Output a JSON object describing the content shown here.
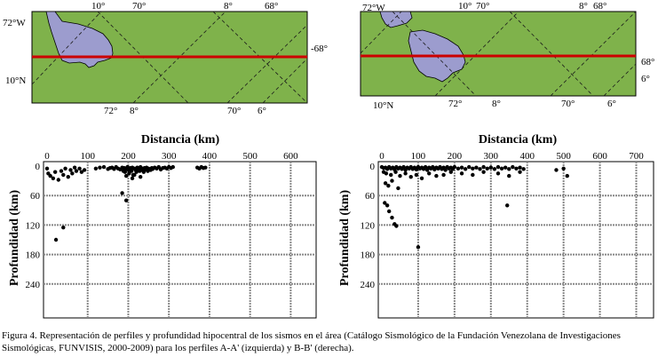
{
  "caption": "Figura 4. Representación de perfiles y profundidad hipocentral de los sismos en el área (Catálogo Sismológico de la Fundación Venezolana de Investigaciones Sismológicas, FUNVISIS, 2000-2009) para los perfiles A-A' (izquierda) y B-B' (derecha).",
  "colors": {
    "land": "#7fb24b",
    "lake": "#9c9cce",
    "profile_line": "#cc0000",
    "grid": "#888888"
  },
  "maps": [
    {
      "id": "left",
      "labels": {
        "top_10": "10°",
        "top_70": "70°",
        "top_8": "8°",
        "top_68": "68°",
        "left_72w": "72°W",
        "left_10n": "10°N",
        "right_68": "-68°",
        "bottom_72": "72°",
        "bottom_8": "8°",
        "bottom_70": "70°",
        "bottom_6": "6°"
      }
    },
    {
      "id": "right",
      "labels": {
        "top_72w": "72°W",
        "top_10": "10°",
        "top_70": "70°",
        "top_8": "8°",
        "top_68": "68°",
        "right_68": "68°",
        "right_6": "6°",
        "bottom_10n": "10°N",
        "bottom_72": "72°",
        "bottom_8": "8°",
        "bottom_70": "70°",
        "bottom_6": "6°"
      }
    }
  ],
  "chart_data": [
    {
      "type": "scatter",
      "xlabel": "Distancia (km)",
      "ylabel": "Profundidad (km)",
      "xlim": [
        0,
        700
      ],
      "ylim": [
        0,
        300
      ],
      "x_ticks": [
        0,
        100,
        200,
        300,
        400,
        500,
        600
      ],
      "y_ticks": [
        0,
        60,
        120,
        180,
        240
      ],
      "points": [
        [
          0,
          5
        ],
        [
          3,
          15
        ],
        [
          8,
          20
        ],
        [
          15,
          25
        ],
        [
          20,
          12
        ],
        [
          28,
          28
        ],
        [
          35,
          10
        ],
        [
          40,
          18
        ],
        [
          45,
          5
        ],
        [
          52,
          22
        ],
        [
          58,
          8
        ],
        [
          62,
          15
        ],
        [
          68,
          3
        ],
        [
          72,
          10
        ],
        [
          80,
          5
        ],
        [
          85,
          12
        ],
        [
          92,
          8
        ],
        [
          22,
          150
        ],
        [
          40,
          125
        ],
        [
          120,
          5
        ],
        [
          130,
          3
        ],
        [
          140,
          2
        ],
        [
          150,
          6
        ],
        [
          155,
          4
        ],
        [
          160,
          3
        ],
        [
          165,
          6
        ],
        [
          170,
          2
        ],
        [
          175,
          5
        ],
        [
          180,
          7
        ],
        [
          185,
          3
        ],
        [
          188,
          10
        ],
        [
          190,
          4
        ],
        [
          192,
          12
        ],
        [
          195,
          6
        ],
        [
          198,
          2
        ],
        [
          200,
          8
        ],
        [
          202,
          15
        ],
        [
          205,
          4
        ],
        [
          208,
          10
        ],
        [
          210,
          3
        ],
        [
          212,
          18
        ],
        [
          215,
          5
        ],
        [
          218,
          8
        ],
        [
          220,
          12
        ],
        [
          222,
          3
        ],
        [
          225,
          6
        ],
        [
          228,
          10
        ],
        [
          230,
          2
        ],
        [
          232,
          8
        ],
        [
          235,
          5
        ],
        [
          238,
          12
        ],
        [
          240,
          4
        ],
        [
          242,
          7
        ],
        [
          245,
          3
        ],
        [
          248,
          10
        ],
        [
          250,
          5
        ],
        [
          255,
          8
        ],
        [
          258,
          4
        ],
        [
          260,
          6
        ],
        [
          265,
          3
        ],
        [
          270,
          5
        ],
        [
          275,
          2
        ],
        [
          280,
          7
        ],
        [
          285,
          4
        ],
        [
          290,
          3
        ],
        [
          295,
          5
        ],
        [
          300,
          2
        ],
        [
          305,
          4
        ],
        [
          310,
          2
        ],
        [
          195,
          20
        ],
        [
          210,
          25
        ],
        [
          230,
          22
        ],
        [
          215,
          18
        ],
        [
          185,
          55
        ],
        [
          195,
          70
        ],
        [
          370,
          3
        ],
        [
          375,
          5
        ],
        [
          380,
          2
        ],
        [
          385,
          4
        ],
        [
          390,
          3
        ]
      ]
    },
    {
      "type": "scatter",
      "xlabel": "Distancia (km)",
      "ylabel": "Profundidad (km)",
      "xlim": [
        0,
        750
      ],
      "ylim": [
        0,
        300
      ],
      "x_ticks": [
        0,
        100,
        200,
        300,
        400,
        500,
        600,
        700
      ],
      "y_ticks": [
        0,
        60,
        120,
        180,
        240
      ],
      "points": [
        [
          0,
          2
        ],
        [
          5,
          4
        ],
        [
          10,
          3
        ],
        [
          15,
          6
        ],
        [
          20,
          2
        ],
        [
          25,
          5
        ],
        [
          30,
          3
        ],
        [
          35,
          7
        ],
        [
          40,
          2
        ],
        [
          45,
          5
        ],
        [
          50,
          3
        ],
        [
          55,
          6
        ],
        [
          60,
          2
        ],
        [
          65,
          8
        ],
        [
          70,
          3
        ],
        [
          75,
          5
        ],
        [
          80,
          2
        ],
        [
          85,
          6
        ],
        [
          90,
          3
        ],
        [
          95,
          7
        ],
        [
          100,
          2
        ],
        [
          105,
          5
        ],
        [
          110,
          3
        ],
        [
          115,
          6
        ],
        [
          120,
          2
        ],
        [
          125,
          8
        ],
        [
          130,
          3
        ],
        [
          135,
          5
        ],
        [
          140,
          2
        ],
        [
          145,
          7
        ],
        [
          150,
          3
        ],
        [
          155,
          5
        ],
        [
          160,
          2
        ],
        [
          165,
          6
        ],
        [
          170,
          3
        ],
        [
          175,
          8
        ],
        [
          180,
          2
        ],
        [
          185,
          5
        ],
        [
          190,
          3
        ],
        [
          195,
          6
        ],
        [
          200,
          2
        ],
        [
          210,
          5
        ],
        [
          220,
          3
        ],
        [
          230,
          6
        ],
        [
          240,
          2
        ],
        [
          250,
          5
        ],
        [
          260,
          3
        ],
        [
          270,
          6
        ],
        [
          280,
          2
        ],
        [
          290,
          5
        ],
        [
          300,
          3
        ],
        [
          310,
          6
        ],
        [
          320,
          2
        ],
        [
          330,
          5
        ],
        [
          340,
          3
        ],
        [
          350,
          6
        ],
        [
          360,
          2
        ],
        [
          370,
          5
        ],
        [
          380,
          3
        ],
        [
          390,
          6
        ],
        [
          5,
          12
        ],
        [
          12,
          15
        ],
        [
          25,
          18
        ],
        [
          38,
          12
        ],
        [
          50,
          20
        ],
        [
          65,
          15
        ],
        [
          80,
          22
        ],
        [
          95,
          18
        ],
        [
          110,
          25
        ],
        [
          130,
          15
        ],
        [
          150,
          20
        ],
        [
          170,
          18
        ],
        [
          190,
          12
        ],
        [
          220,
          15
        ],
        [
          250,
          18
        ],
        [
          280,
          12
        ],
        [
          320,
          15
        ],
        [
          350,
          20
        ],
        [
          380,
          12
        ],
        [
          10,
          35
        ],
        [
          18,
          40
        ],
        [
          28,
          30
        ],
        [
          45,
          45
        ],
        [
          8,
          75
        ],
        [
          15,
          80
        ],
        [
          20,
          92
        ],
        [
          28,
          105
        ],
        [
          35,
          118
        ],
        [
          40,
          122
        ],
        [
          100,
          165
        ],
        [
          345,
          80
        ],
        [
          480,
          8
        ],
        [
          500,
          5
        ],
        [
          510,
          20
        ]
      ]
    }
  ]
}
